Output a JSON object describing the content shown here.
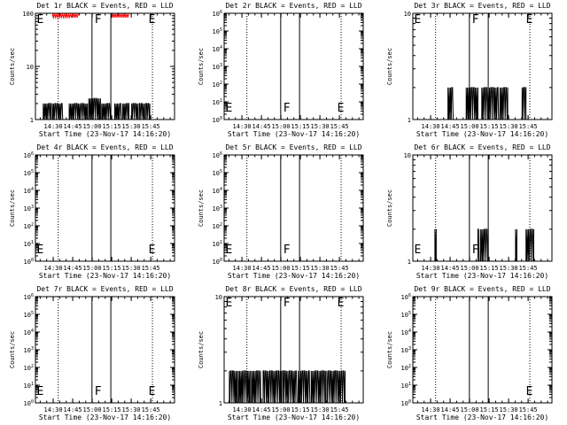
{
  "chart_data": {
    "type": "line",
    "x_tick_labels": [
      "14:30",
      "14:45",
      "15:00",
      "15:15",
      "15:30",
      "15:45"
    ],
    "xlabel": "Start Time (23-Nov-17 14:16:20)",
    "ylabel": "Counts/sec",
    "x_range_minutes_after_start": [
      0,
      107
    ],
    "y_scale": "log",
    "colors": {
      "events": "#000000",
      "lld": "#ff0000",
      "background": "#ffffff"
    },
    "markers": [
      {
        "label": "E",
        "style": "dotted",
        "minutes_after_start": 17.5
      },
      {
        "label": "F",
        "style": "solid",
        "minutes_after_start": 43.5
      },
      {
        "label": "F",
        "style": "solid",
        "minutes_after_start": 58
      },
      {
        "label": "E",
        "style": "dotted",
        "minutes_after_start": 90
      }
    ],
    "panels": [
      {
        "title": "Det 1r BLACK = Events, RED = LLD",
        "y_range": [
          1,
          100
        ],
        "y_tick_labels": [
          "1",
          "10",
          "100"
        ],
        "marker_labels": [
          "E",
          "F",
          "E"
        ],
        "events_bursts": [
          {
            "start": 6,
            "end": 12,
            "level": 2
          },
          {
            "start": 13,
            "end": 21,
            "level": 2
          },
          {
            "start": 26,
            "end": 40,
            "level": 2
          },
          {
            "start": 41,
            "end": 50,
            "level": 2.5
          },
          {
            "start": 51,
            "end": 58,
            "level": 2
          },
          {
            "start": 61,
            "end": 66,
            "level": 2
          },
          {
            "start": 67,
            "end": 72,
            "level": 2
          },
          {
            "start": 74,
            "end": 79,
            "level": 2
          },
          {
            "start": 80,
            "end": 84,
            "level": 2
          },
          {
            "start": 85,
            "end": 88,
            "level": 2
          }
        ],
        "lld_segments": [
          {
            "start": 13,
            "end": 33,
            "level": 90
          },
          {
            "start": 59,
            "end": 72,
            "level": 90
          }
        ]
      },
      {
        "title": "Det 2r BLACK = Events, RED = LLD",
        "y_range": [
          1,
          1000000
        ],
        "y_tick_labels": [
          "10^0",
          "10^1",
          "10^2",
          "10^3",
          "10^4",
          "10^5",
          "10^6"
        ],
        "marker_labels": [
          "E",
          "F",
          "E"
        ],
        "events_bursts": [],
        "lld_segments": []
      },
      {
        "title": "Det 3r BLACK = Events, RED = LLD",
        "y_range": [
          1,
          10
        ],
        "y_tick_labels": [
          "1",
          "10"
        ],
        "marker_labels": [
          "E",
          "F",
          "E"
        ],
        "events_bursts": [
          {
            "start": 27,
            "end": 31,
            "level": 2
          },
          {
            "start": 41,
            "end": 50,
            "level": 2
          },
          {
            "start": 53,
            "end": 66,
            "level": 2
          },
          {
            "start": 67,
            "end": 73,
            "level": 2
          },
          {
            "start": 84,
            "end": 87,
            "level": 2
          }
        ],
        "lld_segments": []
      },
      {
        "title": "Det 4r BLACK = Events, RED = LLD",
        "y_range": [
          1,
          1000000
        ],
        "y_tick_labels": [
          "10^0",
          "10^1",
          "10^2",
          "10^3",
          "10^4",
          "10^5",
          "10^6"
        ],
        "marker_labels": [
          "E",
          "E"
        ],
        "events_bursts": [],
        "lld_segments": []
      },
      {
        "title": "Det 5r BLACK = Events, RED = LLD",
        "y_range": [
          1,
          1000000
        ],
        "y_tick_labels": [
          "10^0",
          "10^1",
          "10^2",
          "10^3",
          "10^4",
          "10^5",
          "10^6"
        ],
        "marker_labels": [
          "F",
          "E"
        ],
        "events_bursts": [],
        "lld_segments": []
      },
      {
        "title": "Det 6r BLACK = Events, RED = LLD",
        "y_range": [
          1,
          10
        ],
        "y_tick_labels": [
          "1",
          "10"
        ],
        "marker_labels": [
          "F",
          "E"
        ],
        "events_bursts": [
          {
            "start": 17,
            "end": 18,
            "level": 2
          },
          {
            "start": 50,
            "end": 51,
            "level": 2
          },
          {
            "start": 52,
            "end": 58,
            "level": 2
          },
          {
            "start": 79,
            "end": 80,
            "level": 2
          },
          {
            "start": 87,
            "end": 93,
            "level": 2
          }
        ],
        "lld_segments": []
      },
      {
        "title": "Det 7r BLACK = Events, RED = LLD",
        "y_range": [
          1,
          1000000
        ],
        "y_tick_labels": [
          "10^0",
          "10^1",
          "10^2",
          "10^3",
          "10^4",
          "10^5",
          "10^6"
        ],
        "marker_labels": [
          "E",
          "F",
          "E"
        ],
        "events_bursts": [],
        "lld_segments": []
      },
      {
        "title": "Det 8r BLACK = Events, RED = LLD",
        "y_range": [
          1,
          10
        ],
        "y_tick_labels": [
          "1",
          "10"
        ],
        "marker_labels": [
          "E",
          "F",
          "E"
        ],
        "events_bursts": [
          {
            "start": 4,
            "end": 10,
            "level": 2
          },
          {
            "start": 11,
            "end": 20,
            "level": 2
          },
          {
            "start": 21,
            "end": 28,
            "level": 2
          },
          {
            "start": 30,
            "end": 44,
            "level": 2
          },
          {
            "start": 45,
            "end": 56,
            "level": 2
          },
          {
            "start": 57,
            "end": 66,
            "level": 2
          },
          {
            "start": 67,
            "end": 78,
            "level": 2
          },
          {
            "start": 79,
            "end": 93,
            "level": 2
          }
        ],
        "lld_segments": []
      },
      {
        "title": "Det 9r BLACK = Events, RED = LLD",
        "y_range": [
          1,
          1000000
        ],
        "y_tick_labels": [
          "10^0",
          "10^1",
          "10^2",
          "10^3",
          "10^4",
          "10^5",
          "10^6"
        ],
        "marker_labels": [
          "E"
        ],
        "events_bursts": [],
        "lld_segments": []
      }
    ]
  }
}
